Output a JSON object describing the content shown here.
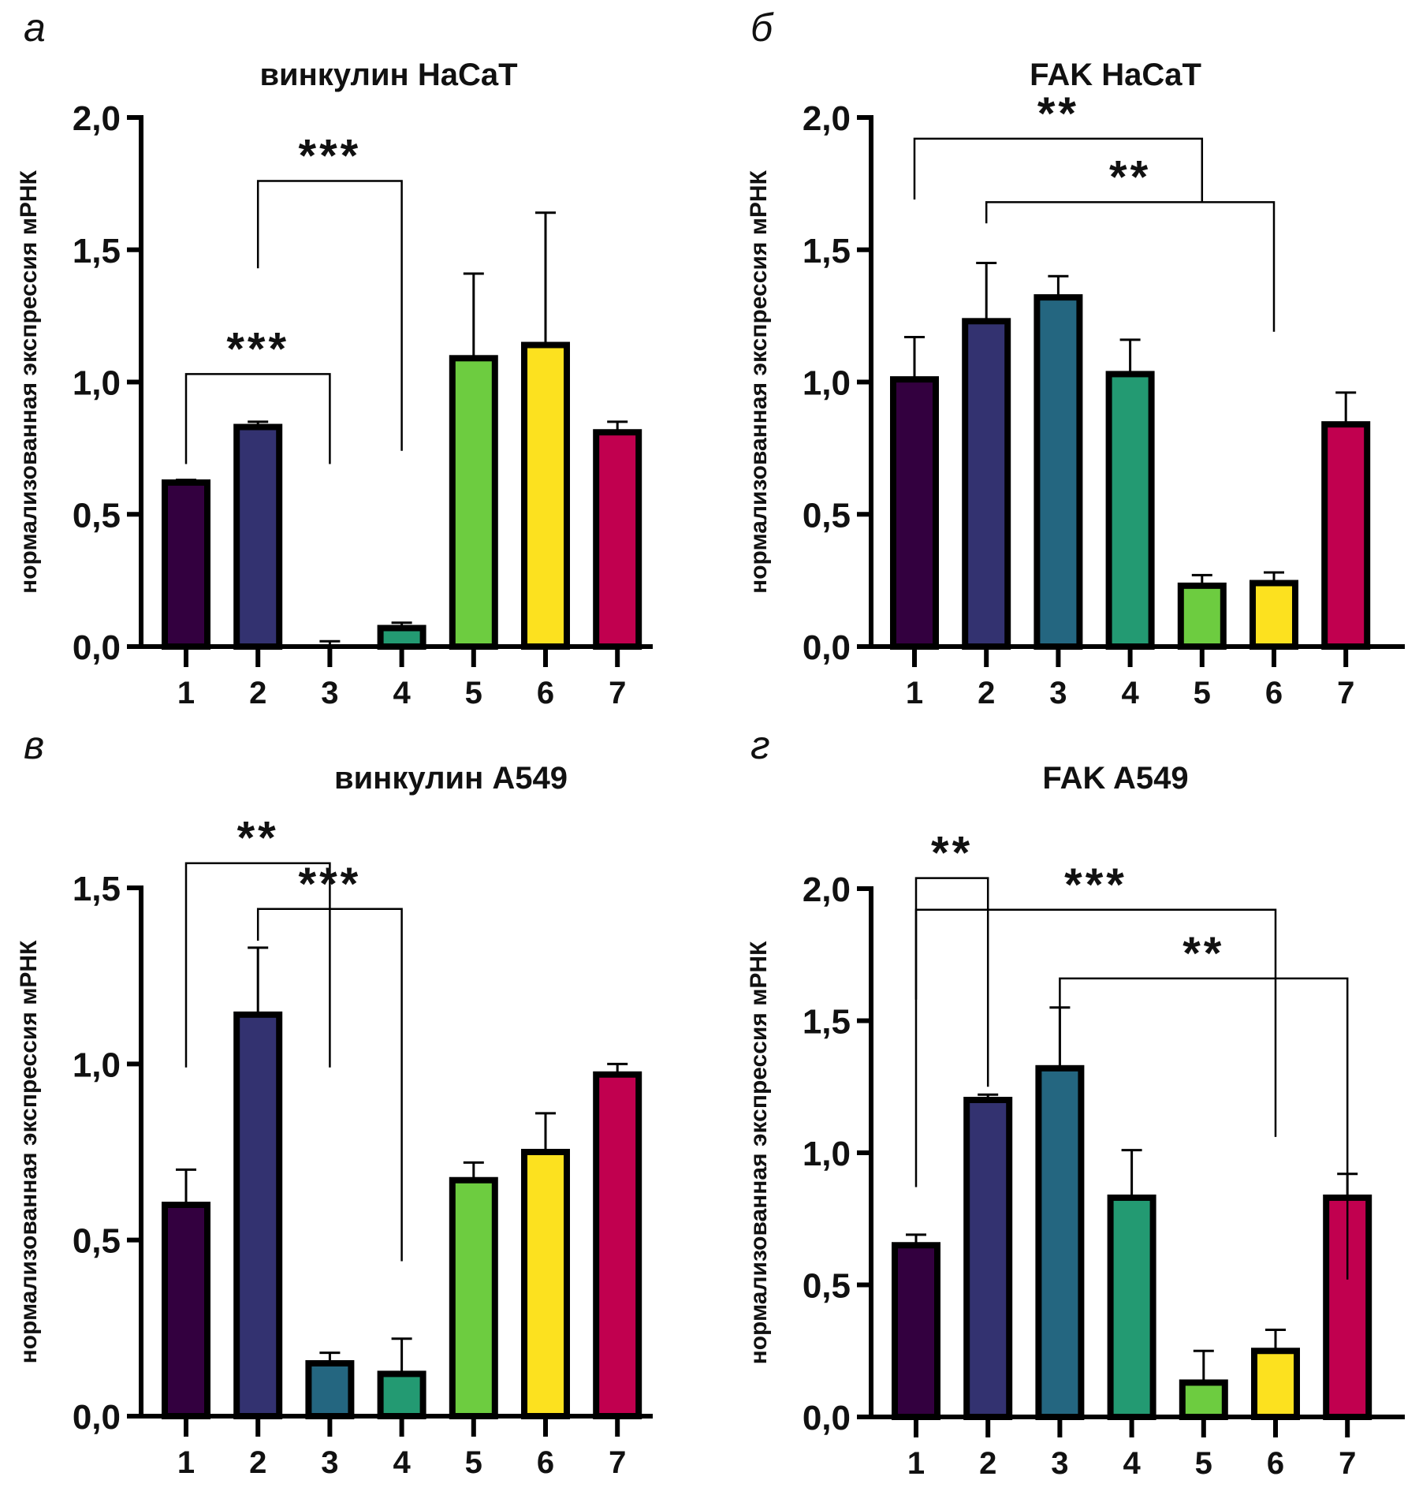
{
  "colors": [
    "#33003f",
    "#333270",
    "#246680",
    "#239a72",
    "#6dcc40",
    "#fce11f",
    "#c1004f"
  ],
  "chart_data": [
    {
      "type": "bar",
      "panel_label": "а",
      "title": "винкулин HaCaT",
      "ylabel": "нормализованная экспрессия мРНК",
      "categories": [
        "1",
        "2",
        "3",
        "4",
        "5",
        "6",
        "7"
      ],
      "values": [
        0.62,
        0.83,
        0.0,
        0.07,
        1.09,
        1.14,
        0.81
      ],
      "error_upper": [
        0.63,
        0.85,
        0.02,
        0.09,
        1.41,
        1.64,
        0.85
      ],
      "ylim": [
        0,
        2.0
      ],
      "yticks": [
        0,
        0.5,
        1.0,
        1.5,
        2.0
      ],
      "ytick_labels": [
        "0,0",
        "0,5",
        "1,0",
        "1,5",
        "2,0"
      ],
      "significance": [
        {
          "from": "1",
          "to": "3",
          "label": "***",
          "level": 1.03,
          "left_end": 0.69,
          "right_end": 0.69
        },
        {
          "from": "2",
          "to": "4",
          "label": "***",
          "level": 1.76,
          "left_end": 1.43,
          "right_end": 0.74
        }
      ]
    },
    {
      "type": "bar",
      "panel_label": "б",
      "title": "FAK HaCaT",
      "ylabel": "нормализованная экспрессия мРНК",
      "categories": [
        "1",
        "2",
        "3",
        "4",
        "5",
        "6",
        "7"
      ],
      "values": [
        1.01,
        1.23,
        1.32,
        1.03,
        0.23,
        0.24,
        0.84
      ],
      "error_upper": [
        1.17,
        1.45,
        1.4,
        1.16,
        0.27,
        0.28,
        0.96
      ],
      "ylim": [
        0,
        2.0
      ],
      "yticks": [
        0,
        0.5,
        1.0,
        1.5,
        2.0
      ],
      "ytick_labels": [
        "0,0",
        "0,5",
        "1,0",
        "1,5",
        "2,0"
      ],
      "significance": [
        {
          "from": "1",
          "to": "5",
          "label": "**",
          "level": 1.92,
          "left_end": 1.69,
          "right_end": 1.68
        },
        {
          "from": "2",
          "to": "6",
          "label": "**",
          "level": 1.68,
          "left_end": 1.6,
          "right_end": 1.19
        }
      ]
    },
    {
      "type": "bar",
      "panel_label": "в",
      "title": "винкулин A549",
      "ylabel": "нормализованная экспрессия мРНК",
      "categories": [
        "1",
        "2",
        "3",
        "4",
        "5",
        "6",
        "7"
      ],
      "values": [
        0.6,
        1.14,
        0.15,
        0.12,
        0.67,
        0.75,
        0.97
      ],
      "error_upper": [
        0.7,
        1.33,
        0.18,
        0.22,
        0.72,
        0.86,
        1.0
      ],
      "ylim": [
        0,
        1.5
      ],
      "yticks": [
        0,
        0.5,
        1.0,
        1.5
      ],
      "ytick_labels": [
        "0,0",
        "0,5",
        "1,0",
        "1,5"
      ],
      "significance": [
        {
          "from": "1",
          "to": "3",
          "label": "**",
          "level": 1.57,
          "left_end": 0.99,
          "right_end": 0.99
        },
        {
          "from": "2",
          "to": "4",
          "label": "***",
          "level": 1.44,
          "left_end": 1.35,
          "right_end": 0.44
        }
      ]
    },
    {
      "type": "bar",
      "panel_label": "г",
      "title": "FAK A549",
      "ylabel": "нормализованная экспрессия мРНК",
      "categories": [
        "1",
        "2",
        "3",
        "4",
        "5",
        "6",
        "7"
      ],
      "values": [
        0.65,
        1.2,
        1.32,
        0.83,
        0.13,
        0.25,
        0.83
      ],
      "error_upper": [
        0.69,
        1.22,
        1.55,
        1.01,
        0.25,
        0.33,
        0.92
      ],
      "ylim": [
        0,
        2.0
      ],
      "yticks": [
        0,
        0.5,
        1.0,
        1.5,
        2.0
      ],
      "ytick_labels": [
        "0,0",
        "0,5",
        "1,0",
        "1,5",
        "2,0"
      ],
      "significance": [
        {
          "from": "1",
          "to": "2",
          "label": "**",
          "level": 2.04,
          "left_end": 0.87,
          "right_end": 1.25
        },
        {
          "from": "1",
          "to": "6",
          "label": "***",
          "level": 1.92,
          "left_end": 1.58,
          "right_end": 1.06
        },
        {
          "from": "3",
          "to": "7",
          "label": "**",
          "level": 1.66,
          "left_end": 1.33,
          "right_end": 0.52
        }
      ]
    }
  ]
}
